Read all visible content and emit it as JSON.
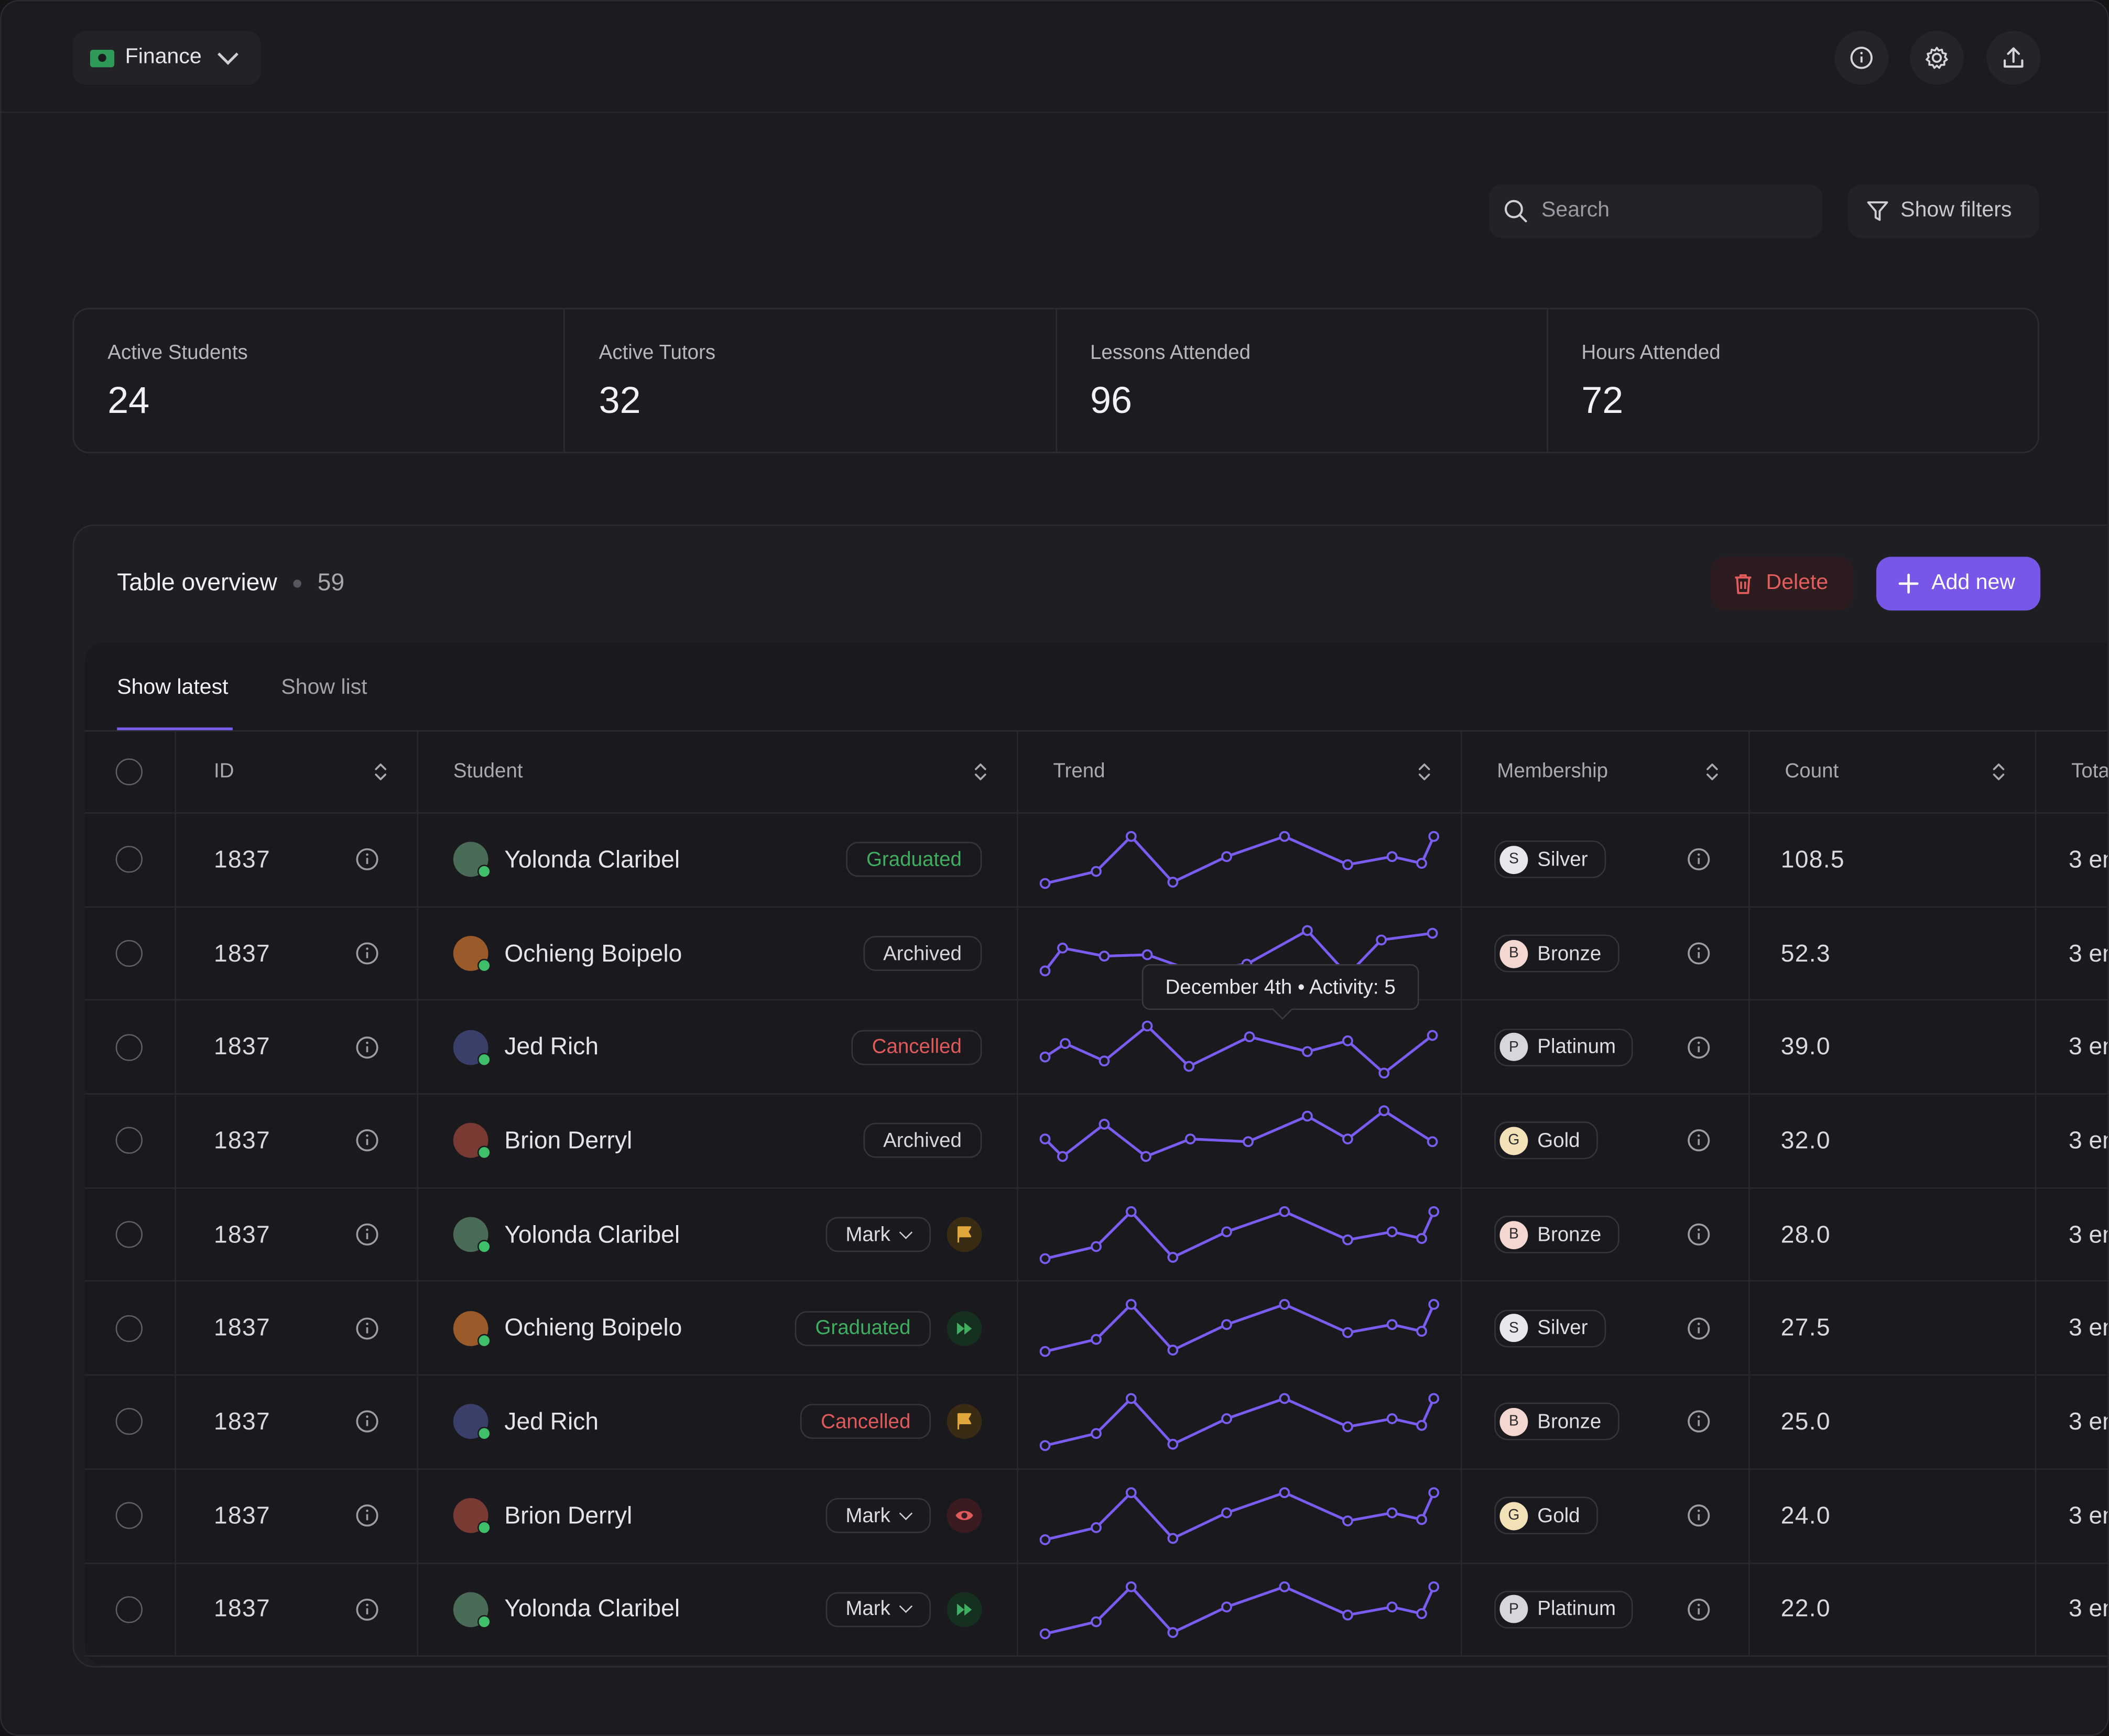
{
  "header": {
    "workspace": "Finance",
    "icons": [
      "info-icon",
      "settings-gear-icon",
      "upload-icon"
    ]
  },
  "toolbar": {
    "search_placeholder": "Search",
    "filters_label": "Show filters"
  },
  "stats": [
    {
      "label": "Active Students",
      "value": "24"
    },
    {
      "label": "Active Tutors",
      "value": "32"
    },
    {
      "label": "Lessons Attended",
      "value": "96"
    },
    {
      "label": "Hours Attended",
      "value": "72"
    }
  ],
  "table": {
    "title": "Table overview",
    "count": "59",
    "delete_label": "Delete",
    "add_label": "Add new",
    "tabs": [
      {
        "label": "Show latest"
      },
      {
        "label": "Show list"
      }
    ],
    "columns": {
      "id": "ID",
      "student": "Student",
      "trend": "Trend",
      "membership": "Membership",
      "count": "Count",
      "total": "Tota"
    },
    "rows": [
      {
        "id": "1837",
        "name": "Yolonda Claribel",
        "status": "Graduated",
        "status_kind": "graduated",
        "action": "",
        "membership": "Silver",
        "m_letter": "S",
        "m_color": "#e8e8ec",
        "count": "108.5",
        "total": "3 en",
        "trend": "a"
      },
      {
        "id": "1837",
        "name": "Ochieng Boipelo",
        "status": "Archived",
        "status_kind": "archived",
        "action": "",
        "membership": "Bronze",
        "m_letter": "B",
        "m_color": "#f3d7d0",
        "count": "52.3",
        "total": "3 en",
        "trend": "b"
      },
      {
        "id": "1837",
        "name": "Jed Rich",
        "status": "Cancelled",
        "status_kind": "cancelled",
        "action": "",
        "membership": "Platinum",
        "m_letter": "P",
        "m_color": "#d7d7db",
        "count": "39.0",
        "total": "3 en",
        "trend": "c"
      },
      {
        "id": "1837",
        "name": "Brion Derryl",
        "status": "Archived",
        "status_kind": "archived",
        "action": "",
        "membership": "Gold",
        "m_letter": "G",
        "m_color": "#f3e2b8",
        "count": "32.0",
        "total": "3 en",
        "trend": "d"
      },
      {
        "id": "1837",
        "name": "Yolonda Claribel",
        "status": "Mark",
        "status_kind": "mark",
        "action": "flag",
        "membership": "Bronze",
        "m_letter": "B",
        "m_color": "#f3d7d0",
        "count": "28.0",
        "total": "3 en",
        "trend": "a"
      },
      {
        "id": "1837",
        "name": "Ochieng Boipelo",
        "status": "Graduated",
        "status_kind": "graduated",
        "action": "forward",
        "membership": "Silver",
        "m_letter": "S",
        "m_color": "#e8e8ec",
        "count": "27.5",
        "total": "3 en",
        "trend": "a"
      },
      {
        "id": "1837",
        "name": "Jed Rich",
        "status": "Cancelled",
        "status_kind": "cancelled",
        "action": "flag",
        "membership": "Bronze",
        "m_letter": "B",
        "m_color": "#f3d7d0",
        "count": "25.0",
        "total": "3 en",
        "trend": "a"
      },
      {
        "id": "1837",
        "name": "Brion Derryl",
        "status": "Mark",
        "status_kind": "mark",
        "action": "eye",
        "membership": "Gold",
        "m_letter": "G",
        "m_color": "#f3e2b8",
        "count": "24.0",
        "total": "3 en",
        "trend": "a"
      },
      {
        "id": "1837",
        "name": "Yolonda Claribel",
        "status": "Mark",
        "status_kind": "mark",
        "action": "forward",
        "membership": "Platinum",
        "m_letter": "P",
        "m_color": "#d7d7db",
        "count": "22.0",
        "total": "3 en",
        "trend": "a"
      }
    ],
    "tooltip": "December 4th • Activity: 5"
  },
  "colors": {
    "accent": "#7756e8",
    "danger": "#e35d5d",
    "success": "#3fae61",
    "warning": "#e1a73a"
  }
}
